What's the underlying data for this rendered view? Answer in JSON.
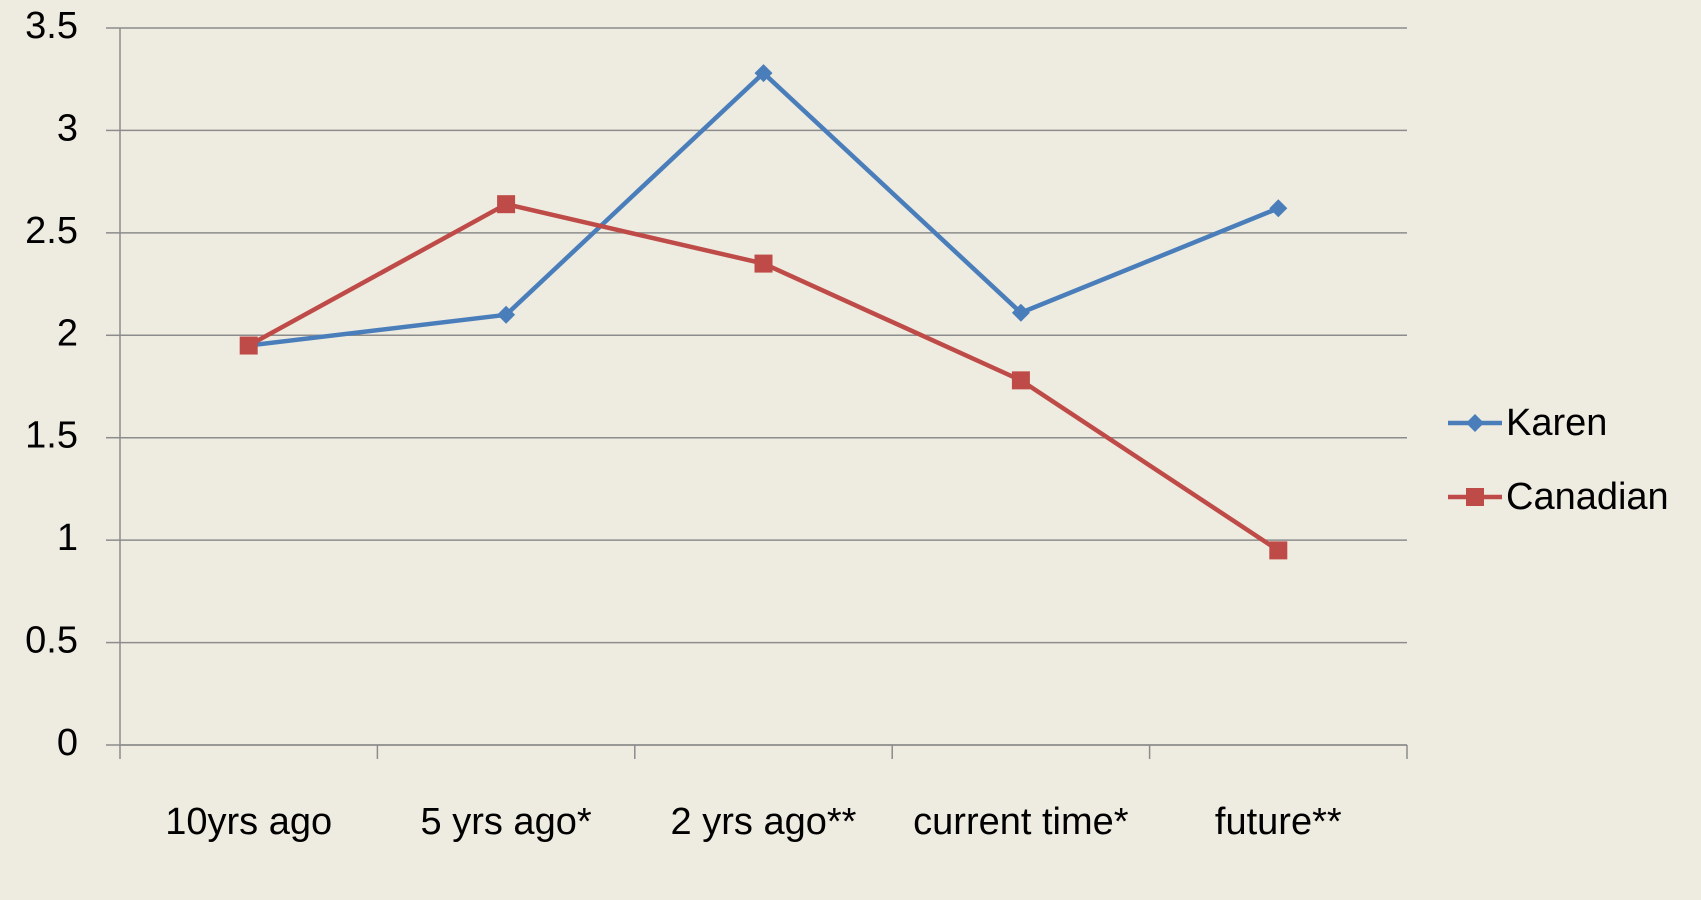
{
  "chart_data": {
    "type": "line",
    "categories": [
      "10yrs ago",
      "5 yrs ago*",
      "2 yrs ago**",
      "current time*",
      "future**"
    ],
    "series": [
      {
        "name": "Karen",
        "color": "#4a7ebb",
        "marker": "diamond",
        "values": [
          1.95,
          2.1,
          3.28,
          2.11,
          2.62
        ]
      },
      {
        "name": "Canadian",
        "color": "#be4b48",
        "marker": "square",
        "values": [
          1.95,
          2.64,
          2.35,
          1.78,
          0.95
        ]
      }
    ],
    "ylim": [
      0,
      3.5
    ],
    "yticks": [
      0,
      0.5,
      1,
      1.5,
      2,
      2.5,
      3,
      3.5
    ],
    "grid": true,
    "legend": "right"
  }
}
